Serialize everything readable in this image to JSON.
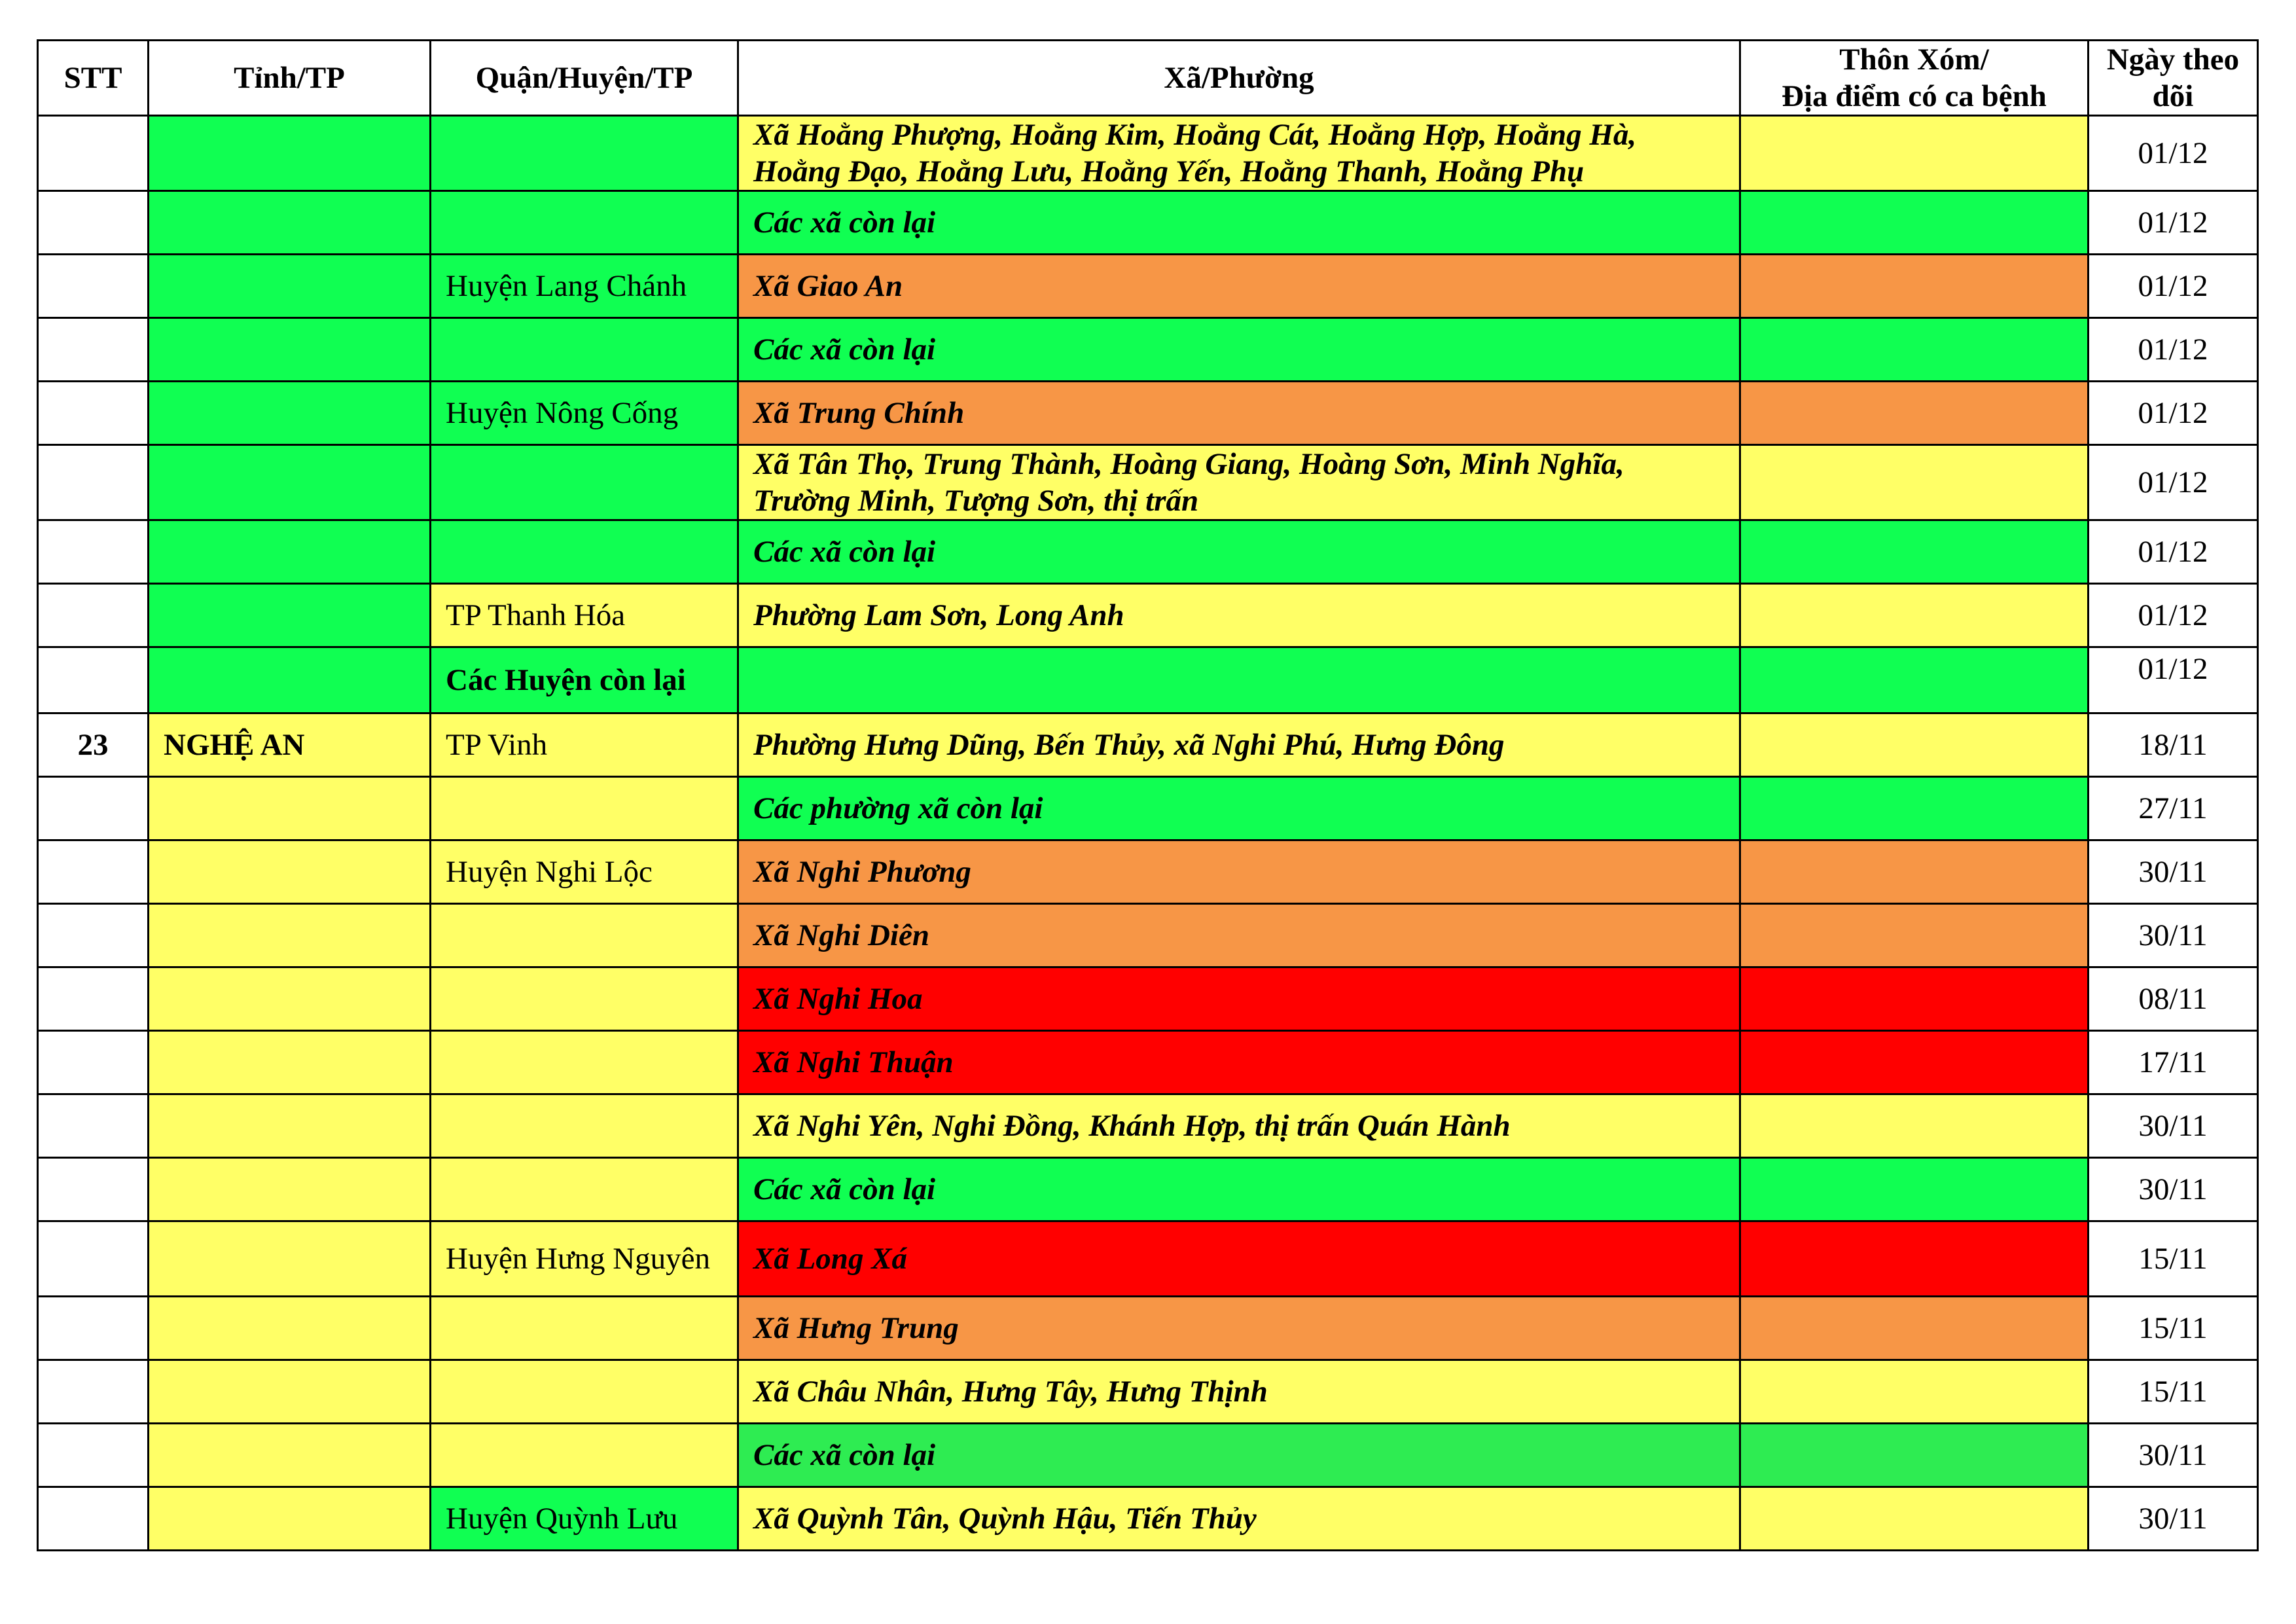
{
  "colors": {
    "green": "#10FF52",
    "green_alt": "#2EEC52",
    "yellow": "#FFFF66",
    "orange": "#F79646",
    "red": "#FF0000",
    "white": "#FFFFFF"
  },
  "headers": {
    "stt": "STT",
    "province": "Tỉnh/TP",
    "district": "Quận/Huyện/TP",
    "ward": "Xã/Phường",
    "hamlet_line1": "Thôn Xóm/",
    "hamlet_line2": "Địa điểm có ca bệnh",
    "date_line1": "Ngày theo",
    "date_line2": "dõi"
  },
  "rows": [
    {
      "stt": "",
      "province": "",
      "district": "",
      "ward_line1": "Xã Hoằng Phượng, Hoằng Kim, Hoằng Cát, Hoằng Hợp, Hoằng Hà,",
      "ward_line2": "Hoằng Đạo, Hoằng Lưu, Hoằng Yến, Hoằng Thanh, Hoằng Phụ",
      "hamlet": "",
      "date": "01/12"
    },
    {
      "stt": "",
      "province": "",
      "district": "",
      "ward_line1": "Các xã còn lại",
      "hamlet": "",
      "date": "01/12"
    },
    {
      "stt": "",
      "province": "",
      "district": "Huyện Lang Chánh",
      "ward_line1": "Xã Giao An",
      "hamlet": "",
      "date": "01/12"
    },
    {
      "stt": "",
      "province": "",
      "district": "",
      "ward_line1": "Các xã còn lại",
      "hamlet": "",
      "date": "01/12"
    },
    {
      "stt": "",
      "province": "",
      "district": "Huyện Nông Cống",
      "ward_line1": "Xã Trung Chính",
      "hamlet": "",
      "date": "01/12"
    },
    {
      "stt": "",
      "province": "",
      "district": "",
      "ward_line1": "Xã Tân Thọ, Trung Thành, Hoàng Giang, Hoàng Sơn, Minh Nghĩa,",
      "ward_line2": "Trường Minh, Tượng Sơn, thị trấn",
      "hamlet": "",
      "date": "01/12"
    },
    {
      "stt": "",
      "province": "",
      "district": "",
      "ward_line1": "Các xã còn lại",
      "hamlet": "",
      "date": "01/12"
    },
    {
      "stt": "",
      "province": "",
      "district": "TP Thanh Hóa",
      "ward_line1": "Phường Lam Sơn, Long Anh",
      "hamlet": "",
      "date": "01/12"
    },
    {
      "stt": "",
      "province": "",
      "district": "Các Huyện còn lại",
      "ward_line1": "",
      "hamlet": "",
      "date": "01/12"
    },
    {
      "stt": "23",
      "province": "NGHỆ AN",
      "district": "TP Vinh",
      "ward_line1": "Phường Hưng Dũng, Bến Thủy, xã Nghi Phú, Hưng Đông",
      "hamlet": "",
      "date": "18/11"
    },
    {
      "stt": "",
      "province": "",
      "district": "",
      "ward_line1": "Các phường xã còn lại",
      "hamlet": "",
      "date": "27/11"
    },
    {
      "stt": "",
      "province": "",
      "district": "Huyện Nghi Lộc",
      "ward_line1": "Xã Nghi Phương",
      "hamlet": "",
      "date": "30/11"
    },
    {
      "stt": "",
      "province": "",
      "district": "",
      "ward_line1": "Xã Nghi Diên",
      "hamlet": "",
      "date": "30/11"
    },
    {
      "stt": "",
      "province": "",
      "district": "",
      "ward_line1": "Xã Nghi Hoa",
      "hamlet": "",
      "date": "08/11"
    },
    {
      "stt": "",
      "province": "",
      "district": "",
      "ward_line1": "Xã Nghi Thuận",
      "hamlet": "",
      "date": "17/11"
    },
    {
      "stt": "",
      "province": "",
      "district": "",
      "ward_line1": "Xã Nghi Yên, Nghi Đồng, Khánh Hợp, thị trấn Quán Hành",
      "hamlet": "",
      "date": "30/11"
    },
    {
      "stt": "",
      "province": "",
      "district": "",
      "ward_line1": "Các xã còn lại",
      "hamlet": "",
      "date": "30/11"
    },
    {
      "stt": "",
      "province": "",
      "district": "Huyện Hưng Nguyên",
      "ward_line1": "Xã Long Xá",
      "hamlet": "",
      "date": "15/11"
    },
    {
      "stt": "",
      "province": "",
      "district": "",
      "ward_line1": "Xã Hưng Trung",
      "hamlet": "",
      "date": "15/11"
    },
    {
      "stt": "",
      "province": "",
      "district": "",
      "ward_line1": "Xã Châu Nhân, Hưng Tây, Hưng Thịnh",
      "hamlet": "",
      "date": "15/11"
    },
    {
      "stt": "",
      "province": "",
      "district": "",
      "ward_line1": "Các xã còn lại",
      "hamlet": "",
      "date": "30/11"
    },
    {
      "stt": "",
      "province": "",
      "district": "Huyện Quỳnh Lưu",
      "ward_line1": "Xã Quỳnh Tân, Quỳnh Hậu, Tiến Thủy",
      "hamlet": "",
      "date": "30/11"
    }
  ]
}
